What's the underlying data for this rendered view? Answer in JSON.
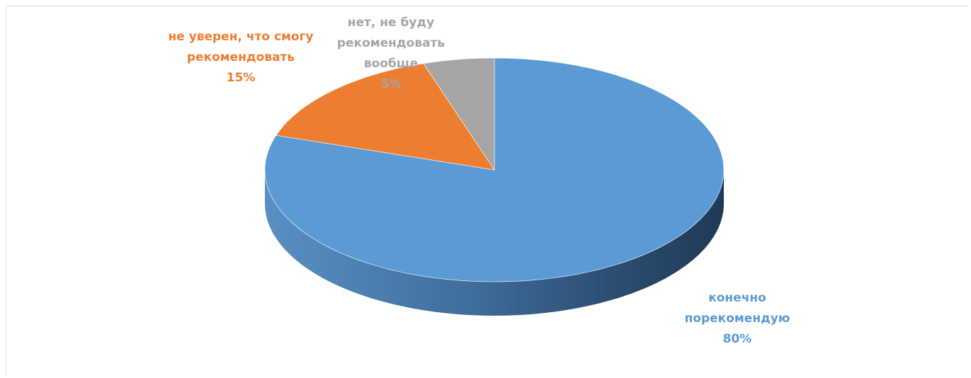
{
  "chart_data": {
    "type": "pie",
    "style": "3d",
    "title": "",
    "slices": [
      {
        "label": "конечно порекомендую",
        "label_lines": [
          "конечно",
          "порекомендую"
        ],
        "value": 80,
        "value_label": "80%",
        "color": "#5b9bd5"
      },
      {
        "label": "не уверен, что смогу рекомендовать",
        "label_lines": [
          "не уверен, что смогу",
          "рекомендовать"
        ],
        "value": 15,
        "value_label": "15%",
        "color": "#ed7d31"
      },
      {
        "label": "нет, не буду рекомендовать вообще",
        "label_lines": [
          "нет, не буду",
          "рекомендовать",
          "вообще"
        ],
        "value": 5,
        "value_label": "5%",
        "color": "#a5a5a5"
      }
    ],
    "legend": "none",
    "data_labels": "category and percentage"
  }
}
